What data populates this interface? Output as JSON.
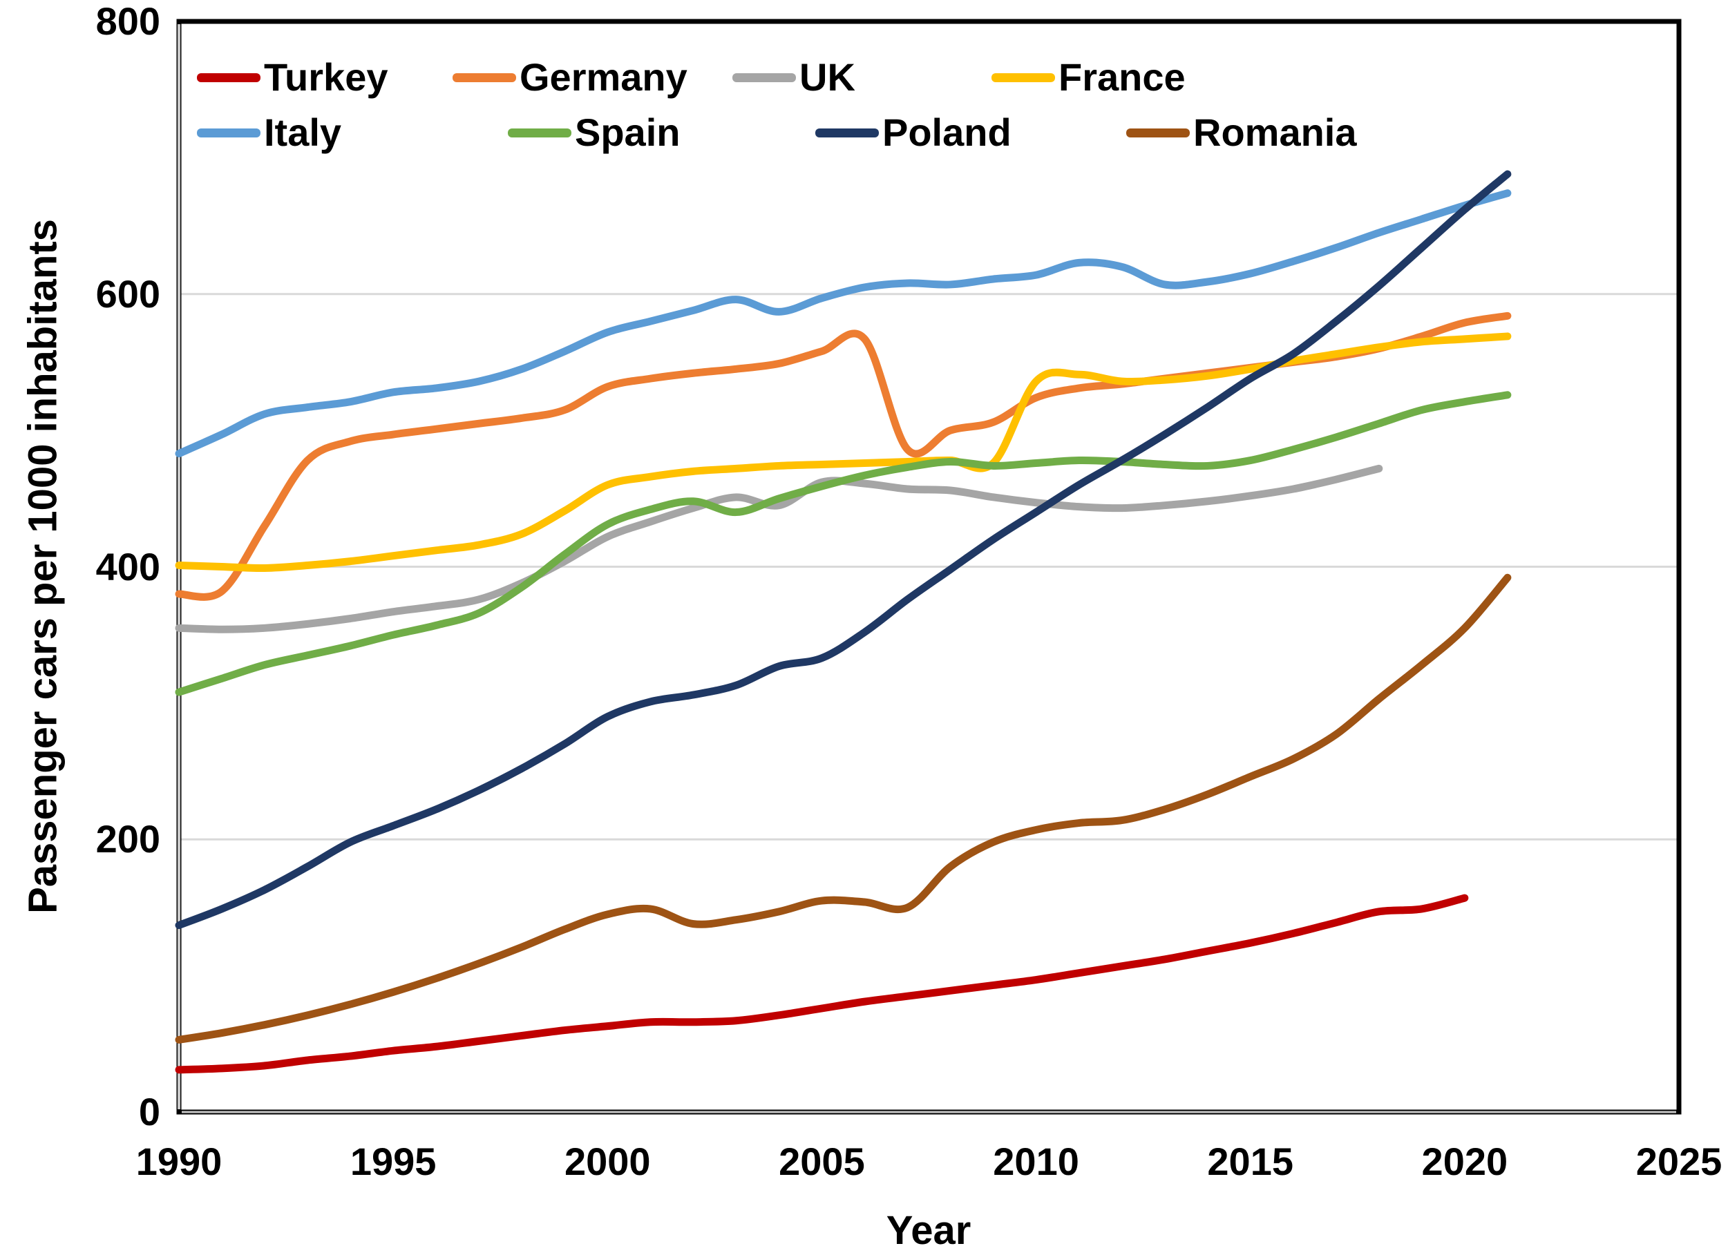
{
  "chart_data": {
    "type": "line",
    "title": "",
    "xlabel": "Year",
    "ylabel": "Passenger cars per 1000 inhabitants",
    "xlim": [
      1990,
      2025
    ],
    "ylim": [
      0,
      800
    ],
    "x_ticks": [
      1990,
      1995,
      2000,
      2005,
      2010,
      2015,
      2020,
      2025
    ],
    "y_ticks": [
      0,
      200,
      400,
      600,
      800
    ],
    "grid": "horizontal",
    "gridline_color": "#D9D9D9",
    "axis_color": "#000000",
    "background": "#FFFFFF",
    "legend_position": "top-left-inside",
    "legend_rows": [
      [
        "Turkey",
        "Germany",
        "UK",
        "France"
      ],
      [
        "Italy",
        "Spain",
        "Poland",
        "Romania"
      ]
    ],
    "years": [
      1990,
      1991,
      1992,
      1993,
      1994,
      1995,
      1996,
      1997,
      1998,
      1999,
      2000,
      2001,
      2002,
      2003,
      2004,
      2005,
      2006,
      2007,
      2008,
      2009,
      2010,
      2011,
      2012,
      2013,
      2014,
      2015,
      2016,
      2017,
      2018,
      2019,
      2020,
      2021
    ],
    "series": [
      {
        "name": "Turkey",
        "color": "#C00000",
        "values": [
          31,
          32,
          34,
          38,
          41,
          45,
          48,
          52,
          56,
          60,
          63,
          66,
          66,
          67,
          71,
          76,
          81,
          85,
          89,
          93,
          97,
          102,
          107,
          112,
          118,
          124,
          131,
          139,
          147,
          149,
          157,
          null
        ]
      },
      {
        "name": "Germany",
        "color": "#ED7D31",
        "values": [
          380,
          382,
          430,
          478,
          492,
          497,
          501,
          505,
          509,
          515,
          532,
          538,
          542,
          545,
          549,
          558,
          567,
          486,
          500,
          506,
          524,
          531,
          534,
          538,
          542,
          546,
          550,
          554,
          560,
          569,
          579,
          584
        ]
      },
      {
        "name": "UK",
        "color": "#A5A5A5",
        "values": [
          355,
          354,
          355,
          358,
          362,
          367,
          371,
          376,
          388,
          404,
          422,
          433,
          443,
          451,
          445,
          462,
          461,
          457,
          456,
          451,
          447,
          444,
          443,
          445,
          448,
          452,
          457,
          464,
          472,
          null,
          null,
          null
        ]
      },
      {
        "name": "France",
        "color": "#FFC000",
        "values": [
          401,
          400,
          399,
          401,
          404,
          408,
          412,
          416,
          424,
          441,
          460,
          466,
          470,
          472,
          474,
          475,
          476,
          477,
          478,
          476,
          536,
          541,
          536,
          537,
          540,
          545,
          551,
          556,
          561,
          565,
          567,
          569
        ]
      },
      {
        "name": "Italy",
        "color": "#5B9BD5",
        "values": [
          483,
          497,
          512,
          517,
          521,
          528,
          531,
          536,
          545,
          558,
          572,
          580,
          588,
          596,
          587,
          597,
          605,
          608,
          607,
          611,
          614,
          623,
          620,
          607,
          609,
          615,
          624,
          634,
          645,
          655,
          665,
          674
        ]
      },
      {
        "name": "Spain",
        "color": "#70AD47",
        "values": [
          308,
          318,
          328,
          335,
          342,
          350,
          357,
          366,
          385,
          409,
          431,
          442,
          448,
          440,
          450,
          459,
          467,
          473,
          477,
          474,
          476,
          478,
          477,
          475,
          474,
          478,
          486,
          495,
          505,
          515,
          521,
          526
        ]
      },
      {
        "name": "Poland",
        "color": "#1F3864",
        "values": [
          137,
          149,
          163,
          180,
          198,
          210,
          222,
          236,
          252,
          270,
          290,
          301,
          306,
          313,
          327,
          333,
          352,
          376,
          398,
          420,
          440,
          460,
          478,
          497,
          517,
          538,
          556,
          580,
          606,
          634,
          662,
          688
        ]
      },
      {
        "name": "Romania",
        "color": "#9E5314",
        "values": [
          53,
          58,
          64,
          71,
          79,
          88,
          98,
          109,
          121,
          134,
          145,
          149,
          138,
          141,
          147,
          155,
          154,
          150,
          180,
          198,
          207,
          212,
          214,
          222,
          233,
          246,
          259,
          277,
          303,
          328,
          355,
          392
        ]
      }
    ]
  }
}
